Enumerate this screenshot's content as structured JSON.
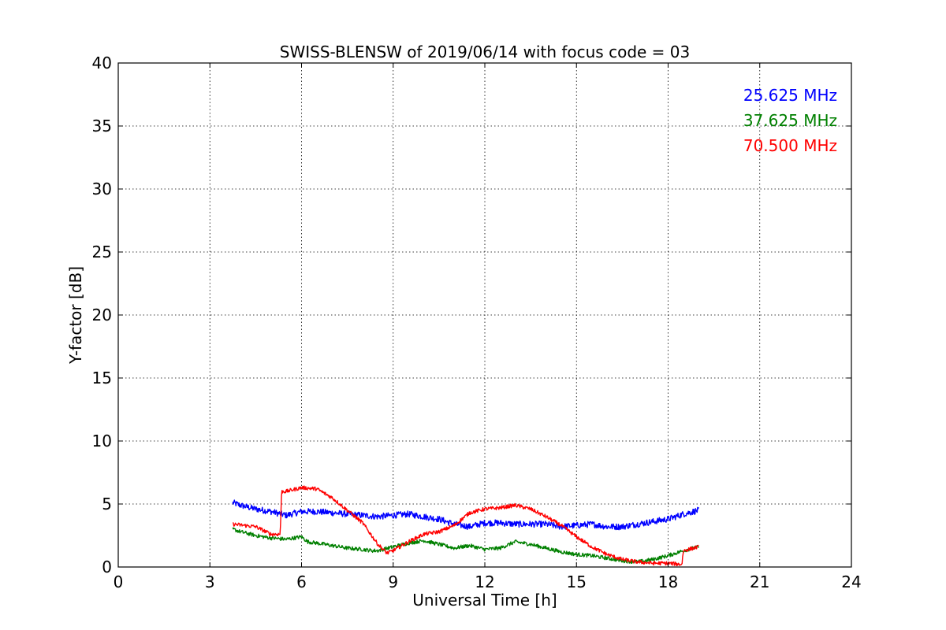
{
  "chart_data": {
    "type": "line",
    "title": "SWISS-BLENSW of 2019/06/14 with focus code = 03",
    "xlabel": "Universal Time [h]",
    "ylabel": "Y-factor [dB]",
    "xlim": [
      0,
      24
    ],
    "ylim": [
      0,
      40
    ],
    "xticks": [
      0,
      3,
      6,
      9,
      12,
      15,
      18,
      21,
      24
    ],
    "yticks": [
      0,
      5,
      10,
      15,
      20,
      25,
      30,
      35,
      40
    ],
    "grid": true,
    "legend_position": "top-right",
    "series": [
      {
        "name": "25.625 MHz",
        "color": "#0000ff",
        "noise": 0.25,
        "x": [
          3.75,
          4.0,
          4.5,
          5.0,
          5.5,
          6.0,
          6.5,
          7.0,
          7.5,
          8.0,
          8.5,
          9.0,
          9.5,
          10.0,
          10.5,
          11.0,
          11.5,
          12.0,
          12.5,
          13.0,
          13.5,
          14.0,
          14.5,
          15.0,
          15.5,
          16.0,
          16.5,
          17.0,
          17.5,
          18.0,
          18.5,
          19.0
        ],
        "y": [
          5.1,
          4.9,
          4.6,
          4.4,
          4.1,
          4.4,
          4.4,
          4.3,
          4.2,
          4.1,
          4.0,
          4.1,
          4.2,
          4.0,
          3.8,
          3.4,
          3.2,
          3.5,
          3.5,
          3.4,
          3.4,
          3.4,
          3.2,
          3.3,
          3.4,
          3.2,
          3.2,
          3.4,
          3.6,
          3.8,
          4.2,
          4.5
        ]
      },
      {
        "name": "37.625 MHz",
        "color": "#008000",
        "noise": 0.15,
        "x": [
          3.75,
          4.0,
          4.5,
          5.0,
          5.5,
          6.0,
          6.2,
          6.5,
          7.0,
          7.5,
          8.0,
          8.3,
          8.5,
          9.0,
          9.5,
          10.0,
          10.5,
          11.0,
          11.5,
          12.0,
          12.5,
          13.0,
          13.5,
          14.0,
          14.5,
          15.0,
          15.5,
          16.0,
          16.5,
          17.0,
          17.5,
          18.0,
          18.5,
          19.0
        ],
        "y": [
          3.0,
          2.8,
          2.5,
          2.3,
          2.2,
          2.4,
          2.0,
          1.9,
          1.7,
          1.5,
          1.4,
          1.3,
          1.3,
          1.6,
          1.9,
          2.1,
          1.8,
          1.5,
          1.7,
          1.4,
          1.5,
          2.0,
          1.8,
          1.5,
          1.2,
          1.0,
          0.9,
          0.7,
          0.5,
          0.4,
          0.6,
          0.9,
          1.3,
          1.6
        ]
      },
      {
        "name": "70.500 MHz",
        "color": "#ff0000",
        "noise": 0.15,
        "x": [
          3.75,
          4.5,
          5.0,
          5.3,
          5.35,
          5.5,
          6.0,
          6.5,
          7.0,
          7.5,
          8.0,
          8.5,
          8.8,
          9.0,
          9.5,
          10.0,
          10.5,
          11.0,
          11.5,
          12.0,
          12.5,
          13.0,
          13.5,
          14.0,
          14.5,
          15.0,
          15.5,
          16.0,
          16.5,
          17.0,
          17.5,
          18.0,
          18.45,
          18.5,
          19.0
        ],
        "y": [
          3.4,
          3.2,
          2.6,
          2.6,
          6.0,
          6.0,
          6.3,
          6.2,
          5.5,
          4.5,
          3.5,
          1.8,
          1.1,
          1.3,
          2.0,
          2.6,
          2.8,
          3.3,
          4.3,
          4.6,
          4.7,
          4.9,
          4.6,
          4.0,
          3.3,
          2.4,
          1.6,
          1.0,
          0.6,
          0.4,
          0.3,
          0.3,
          0.2,
          1.3,
          1.6
        ]
      }
    ]
  }
}
